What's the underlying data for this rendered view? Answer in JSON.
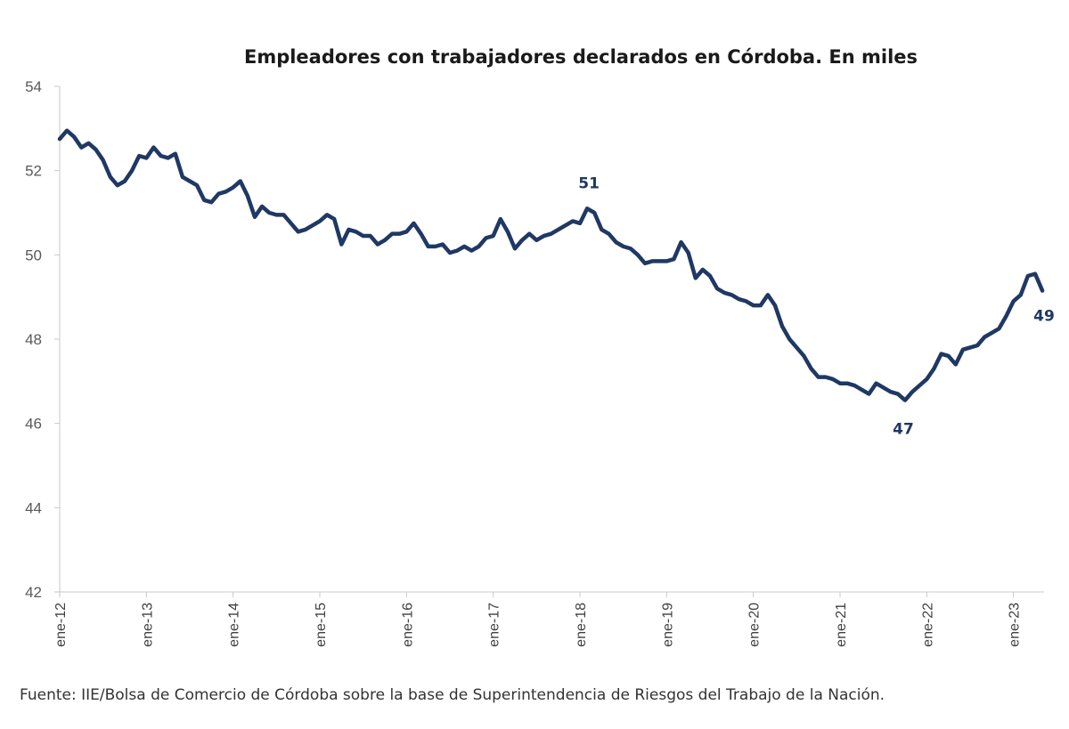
{
  "chart_data": {
    "type": "line",
    "title": "Empleadores con trabajadores declarados en Córdoba. En miles",
    "xlabel": "",
    "ylabel": "",
    "ylim": [
      42,
      54
    ],
    "yticks": [
      42,
      44,
      46,
      48,
      50,
      52,
      54
    ],
    "grid": false,
    "legend": "none",
    "color": "#1f3864",
    "x_tick_labels": [
      "ene-12",
      "ene-13",
      "ene-14",
      "ene-15",
      "ene-16",
      "ene-17",
      "ene-18",
      "ene-19",
      "ene-20",
      "ene-21",
      "ene-22",
      "ene-23"
    ],
    "x_start": "2012-01",
    "x_end": "2023-04",
    "series": [
      {
        "values": [
          52.75,
          52.95,
          52.8,
          52.55,
          52.65,
          52.5,
          52.25,
          51.85,
          51.65,
          51.75,
          52.0,
          52.35,
          52.3,
          52.55,
          52.35,
          52.3,
          52.4,
          51.85,
          51.75,
          51.65,
          51.3,
          51.25,
          51.45,
          51.5,
          51.6,
          51.75,
          51.4,
          50.9,
          51.15,
          51.0,
          50.95,
          50.95,
          50.75,
          50.55,
          50.6,
          50.7,
          50.8,
          50.95,
          50.85,
          50.25,
          50.6,
          50.55,
          50.45,
          50.45,
          50.25,
          50.35,
          50.5,
          50.5,
          50.55,
          50.75,
          50.5,
          50.2,
          50.2,
          50.25,
          50.05,
          50.1,
          50.2,
          50.1,
          50.2,
          50.4,
          50.45,
          50.85,
          50.55,
          50.15,
          50.35,
          50.5,
          50.35,
          50.45,
          50.5,
          50.6,
          50.7,
          50.8,
          50.75,
          51.1,
          51.0,
          50.6,
          50.5,
          50.3,
          50.2,
          50.15,
          50.0,
          49.8,
          49.85,
          49.85,
          49.85,
          49.9,
          50.3,
          50.05,
          49.45,
          49.65,
          49.5,
          49.2,
          49.1,
          49.05,
          48.95,
          48.9,
          48.8,
          48.8,
          49.05,
          48.8,
          48.3,
          48.0,
          47.8,
          47.6,
          47.3,
          47.1,
          47.1,
          47.05,
          46.95,
          46.95,
          46.9,
          46.8,
          46.7,
          46.95,
          46.85,
          46.75,
          46.7,
          46.55,
          46.75,
          46.9,
          47.05,
          47.3,
          47.65,
          47.6,
          47.4,
          47.75,
          47.8,
          47.85,
          48.05,
          48.15,
          48.25,
          48.55,
          48.9,
          49.05,
          49.5,
          49.55,
          49.15
        ]
      }
    ],
    "annotations": [
      {
        "label": "51",
        "x_index": 73,
        "y": 51.1,
        "position": "above"
      },
      {
        "label": "47",
        "x_index": 117,
        "y": 46.55,
        "position": "below"
      },
      {
        "label": "49",
        "x_index": 135,
        "y": 49.15,
        "position": "below-right"
      }
    ]
  },
  "source": "Fuente: IIE/Bolsa de Comercio de Córdoba sobre la base de Superintendencia de Riesgos del Trabajo de la Nación."
}
